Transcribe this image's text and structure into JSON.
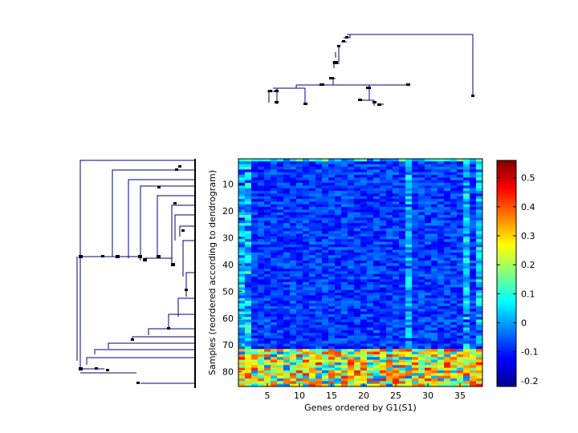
{
  "chart_data": {
    "type": "heatmap",
    "xlabel": "Genes ordered by G1(S1)",
    "ylabel": "Samples (reordered according to dendrogram)",
    "n_cols": 38,
    "n_rows": 85,
    "x_ticks": [
      5,
      10,
      15,
      20,
      25,
      30,
      35
    ],
    "y_ticks": [
      10,
      20,
      30,
      40,
      50,
      60,
      70,
      80
    ],
    "colorbar": {
      "range": [
        -0.22,
        0.56
      ],
      "ticks": [
        0.5,
        0.4,
        0.3,
        0.2,
        0.1,
        0,
        -0.1,
        -0.2
      ],
      "tick_labels": [
        "0.5",
        "0.4",
        "0.3",
        "0.2",
        "0.1",
        "0",
        "-0.1",
        "-0.2"
      ],
      "colormap": "jet"
    },
    "typical_value": -0.08,
    "high_value_region": {
      "rows": [
        72,
        85
      ],
      "value_range": [
        0.1,
        0.45
      ]
    },
    "hot_columns": [
      1,
      2,
      27,
      36,
      38
    ],
    "dendrograms": [
      "columns (top)",
      "rows (left)"
    ]
  }
}
